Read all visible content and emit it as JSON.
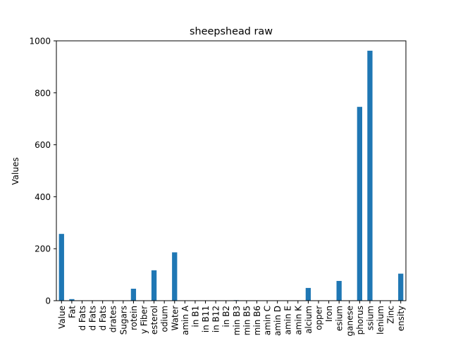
{
  "chart_data": {
    "type": "bar",
    "title": "sheepshead raw",
    "xlabel": "",
    "ylabel": "Values",
    "ylim": [
      0,
      1000
    ],
    "yticks": [
      0,
      200,
      400,
      600,
      800,
      1000
    ],
    "bar_color": "#1f77b4",
    "grid": false,
    "categories": [
      "Value",
      "Fat",
      "d Fats",
      "d Fats",
      "d Fats",
      "drates",
      "Sugars",
      "rotein",
      "y Fiber",
      "esterol",
      "odium",
      "Water",
      "amin A",
      "in B1",
      "in B11",
      "in B12",
      "in B2",
      "min B3",
      "min B5",
      "min B6",
      "amin C",
      "amin D",
      "amin E",
      "amin K",
      "alcium",
      "opper",
      "Iron",
      "esium",
      "ganese",
      "phorus",
      "ssium",
      "lenium",
      "Zinc",
      "ensity"
    ],
    "values": [
      257,
      6,
      1,
      1,
      1,
      0,
      0,
      46,
      0,
      117,
      0,
      186,
      0,
      0,
      0,
      0,
      0,
      2,
      0,
      0,
      0,
      0,
      0,
      0,
      49,
      0,
      0,
      76,
      0,
      746,
      962,
      0,
      0,
      104
    ]
  }
}
